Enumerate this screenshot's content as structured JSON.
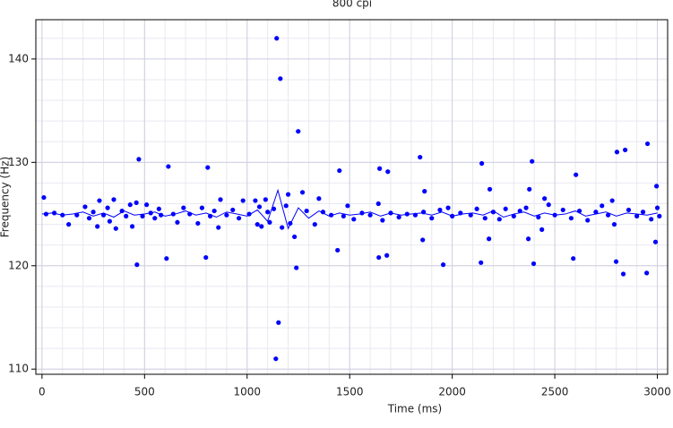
{
  "chart_data": {
    "type": "scatter",
    "title": "800 cpi",
    "xlabel": "Time (ms)",
    "ylabel": "Frequency (Hz)",
    "xlim": [
      -30,
      3050
    ],
    "ylim": [
      109.5,
      143.8
    ],
    "xticks": [
      0,
      500,
      1000,
      1500,
      2000,
      2500,
      3000
    ],
    "yticks": [
      110,
      120,
      130,
      140
    ],
    "grid": true,
    "minor_grid": true,
    "series": [
      {
        "kind": "markers",
        "color": "#0000ff",
        "x": [
          20,
          60,
          100,
          130,
          170,
          210,
          230,
          250,
          270,
          280,
          300,
          320,
          330,
          350,
          360,
          390,
          410,
          430,
          440,
          460,
          490,
          510,
          530,
          550,
          570,
          580,
          640,
          660,
          690,
          720,
          760,
          780,
          820,
          840,
          860,
          870,
          900,
          930,
          960,
          980,
          1010,
          1040,
          1050,
          1060,
          1070,
          1090,
          1100,
          1110,
          1130,
          1170,
          1190,
          1200,
          1210,
          1270,
          1290,
          1330,
          1350,
          1370,
          1410,
          1470,
          1490,
          1520,
          1560,
          1600,
          1640,
          1660,
          1700,
          1740,
          1780,
          1820,
          1860,
          1900,
          1940,
          1980,
          2000,
          2040,
          2090,
          2120,
          2160,
          2200,
          2230,
          2260,
          2300,
          2330,
          2360,
          2420,
          2470,
          2500,
          2540,
          2580,
          2620,
          2660,
          2700,
          2730,
          2760,
          2780,
          2790,
          2860,
          2900,
          2930,
          2970,
          3000,
          3010,
          9,
          472,
          463,
          616,
          607,
          808,
          799,
          1144,
          1162,
          1153,
          1140,
          1249,
          1240,
          1231,
          1450,
          1441,
          1646,
          1642,
          1686,
          1681,
          1843,
          1865,
          1856,
          1956,
          2144,
          2140,
          2183,
          2179,
          2389,
          2397,
          2376,
          2371,
          2603,
          2590,
          2799,
          2803,
          2843,
          2834,
          2952,
          2948,
          2996,
          2991,
          2437,
          2450
        ],
        "values": [
          125.0,
          125.1,
          124.9,
          124.0,
          124.9,
          125.7,
          124.6,
          125.2,
          123.8,
          126.3,
          124.9,
          125.6,
          124.3,
          126.4,
          123.6,
          125.3,
          124.8,
          125.9,
          123.8,
          126.1,
          124.8,
          125.9,
          125.1,
          124.6,
          125.5,
          124.9,
          125.0,
          124.2,
          125.6,
          125.0,
          124.1,
          125.6,
          124.8,
          125.3,
          123.7,
          126.4,
          124.9,
          125.4,
          124.6,
          126.3,
          125.0,
          126.3,
          124.0,
          125.7,
          123.8,
          126.4,
          125.2,
          124.2,
          125.5,
          123.7,
          125.8,
          126.9,
          124.1,
          127.1,
          125.3,
          124.0,
          126.5,
          125.2,
          124.9,
          124.8,
          125.8,
          124.5,
          125.1,
          124.9,
          126.0,
          124.4,
          125.1,
          124.7,
          125.0,
          124.9,
          125.2,
          124.6,
          125.4,
          125.6,
          124.8,
          125.1,
          124.9,
          125.5,
          124.6,
          125.2,
          124.5,
          125.5,
          124.8,
          125.3,
          125.6,
          124.7,
          125.9,
          124.9,
          125.4,
          124.6,
          125.3,
          124.4,
          125.2,
          125.8,
          124.9,
          126.3,
          124.0,
          125.4,
          124.8,
          125.2,
          124.5,
          125.6,
          124.8,
          126.6,
          130.3,
          120.1,
          129.6,
          120.7,
          129.5,
          120.8,
          142.0,
          138.1,
          114.5,
          111.0,
          133.0,
          119.8,
          122.8,
          129.2,
          121.5,
          129.4,
          120.8,
          129.1,
          121.0,
          130.5,
          127.2,
          122.5,
          120.1,
          129.9,
          120.3,
          127.4,
          122.6,
          130.1,
          120.2,
          127.4,
          122.6,
          128.8,
          120.7,
          120.4,
          131.0,
          131.2,
          119.2,
          131.8,
          119.3,
          127.7,
          122.3,
          123.5,
          126.5
        ]
      },
      {
        "kind": "line",
        "color": "#0000ff",
        "x": [
          0,
          50,
          100,
          150,
          200,
          250,
          300,
          350,
          400,
          450,
          500,
          550,
          600,
          650,
          700,
          750,
          800,
          850,
          900,
          950,
          1000,
          1050,
          1100,
          1150,
          1200,
          1250,
          1300,
          1350,
          1400,
          1450,
          1500,
          1550,
          1600,
          1650,
          1700,
          1750,
          1800,
          1850,
          1900,
          1950,
          2000,
          2050,
          2100,
          2150,
          2200,
          2250,
          2300,
          2350,
          2400,
          2450,
          2500,
          2550,
          2600,
          2650,
          2700,
          2750,
          2800,
          2850,
          2900,
          2950,
          3000
        ],
        "values": [
          125.0,
          125.1,
          124.9,
          125.0,
          125.2,
          124.8,
          125.1,
          124.7,
          125.3,
          124.9,
          125.0,
          125.2,
          124.8,
          125.0,
          125.3,
          124.9,
          125.1,
          124.7,
          125.2,
          125.0,
          124.8,
          125.4,
          124.3,
          127.3,
          123.6,
          125.6,
          124.6,
          125.3,
          124.8,
          125.1,
          124.9,
          125.0,
          125.2,
          124.8,
          125.1,
          124.9,
          125.0,
          125.1,
          124.9,
          125.2,
          124.8,
          125.0,
          125.1,
          124.9,
          125.3,
          124.7,
          125.0,
          125.2,
          124.8,
          125.1,
          124.9,
          125.0,
          125.3,
          124.8,
          125.0,
          125.2,
          124.8,
          125.1,
          125.0,
          124.9,
          125.1
        ]
      }
    ]
  }
}
